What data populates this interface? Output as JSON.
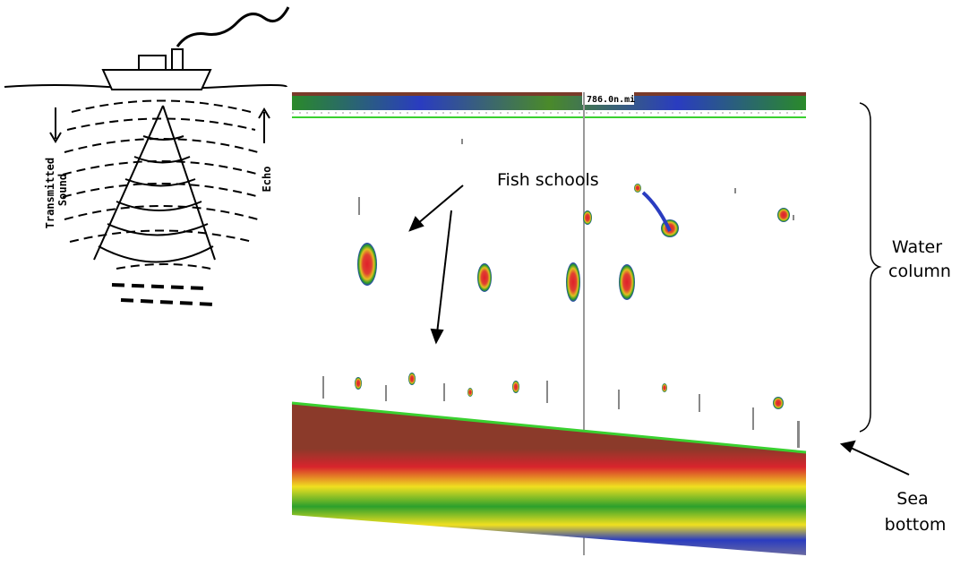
{
  "labels": {
    "fish_schools": "Fish schools",
    "water_column": [
      "Water",
      "column"
    ],
    "sea_bottom": [
      "Sea",
      "bottom"
    ],
    "transmitted_sound": [
      "Transmitted",
      "Sound"
    ],
    "echo": "Echo",
    "distance": "786.0n.mi"
  }
}
